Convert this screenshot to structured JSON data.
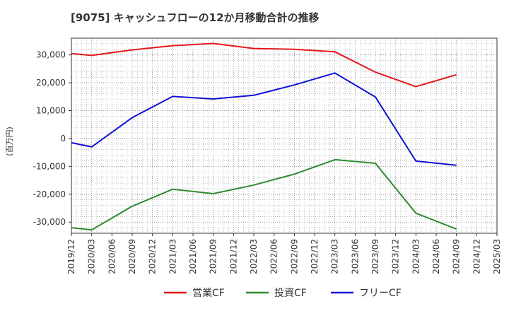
{
  "chart_data": {
    "type": "line",
    "title": "[9075]  キャッシュフローの12か月移動合計の推移",
    "ylabel": "(百万円)",
    "xlabel": "",
    "ylim": [
      -34000,
      36000
    ],
    "yticks": [
      -30000,
      -20000,
      -10000,
      0,
      10000,
      20000,
      30000
    ],
    "ytick_labels": [
      "-30,000",
      "-20,000",
      "-10,000",
      "0",
      "10,000",
      "20,000",
      "30,000"
    ],
    "categories": [
      "2019/12",
      "2020/03",
      "2020/06",
      "2020/09",
      "2020/12",
      "2021/03",
      "2021/06",
      "2021/09",
      "2021/12",
      "2022/03",
      "2022/06",
      "2022/09",
      "2022/12",
      "2023/03",
      "2023/06",
      "2023/09",
      "2023/12",
      "2024/03",
      "2024/06",
      "2024/09",
      "2024/12",
      "2025/03"
    ],
    "grid": true,
    "legend_position": "bottom",
    "series": [
      {
        "name": "営業CF",
        "color": "#e31a1c",
        "values": [
          30500,
          29800,
          null,
          31800,
          null,
          33300,
          null,
          34100,
          null,
          32300,
          null,
          32000,
          null,
          31100,
          null,
          23800,
          null,
          18600,
          null,
          22900,
          null,
          null
        ]
      },
      {
        "name": "投資CF",
        "color": "#2e8b2e",
        "values": [
          -32000,
          -32800,
          null,
          -24300,
          null,
          -18200,
          null,
          -19800,
          null,
          -16700,
          null,
          -12800,
          null,
          -7600,
          null,
          -8900,
          null,
          -26800,
          null,
          -32500,
          null,
          null
        ]
      },
      {
        "name": "フリーCF",
        "color": "#1010d8",
        "values": [
          -1500,
          -3000,
          null,
          7500,
          null,
          15100,
          null,
          14200,
          null,
          15500,
          null,
          19200,
          null,
          23500,
          null,
          14900,
          null,
          -8100,
          null,
          -9600,
          null,
          null
        ]
      }
    ]
  }
}
